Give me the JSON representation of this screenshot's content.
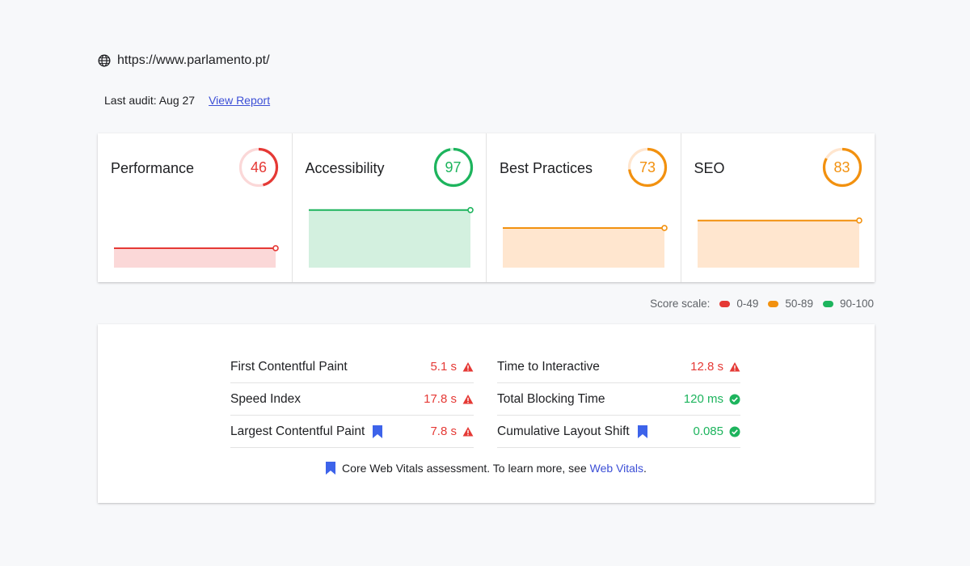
{
  "header": {
    "url": "https://www.parlamento.pt/",
    "last_audit": "Last audit: Aug 27",
    "view_report": "View Report"
  },
  "colors": {
    "red": "#e53935",
    "orange": "#f2910f",
    "green": "#1db45d",
    "blue": "#3d63ea"
  },
  "categories": [
    {
      "name": "Performance",
      "score": 46,
      "status": "red",
      "color": "#e53935",
      "fill": "#fbd8d8"
    },
    {
      "name": "Accessibility",
      "score": 97,
      "status": "green",
      "color": "#1db45d",
      "fill": "#d3f0df"
    },
    {
      "name": "Best Practices",
      "score": 73,
      "status": "orange",
      "color": "#f2910f",
      "fill": "#ffe6cf"
    },
    {
      "name": "SEO",
      "score": 83,
      "status": "orange",
      "color": "#f2910f",
      "fill": "#ffe6cf"
    }
  ],
  "legend": {
    "label": "Score scale:",
    "ranges": [
      {
        "label": "0-49",
        "color": "#e53935"
      },
      {
        "label": "50-89",
        "color": "#f2910f"
      },
      {
        "label": "90-100",
        "color": "#1db45d"
      }
    ]
  },
  "metrics": {
    "left": [
      {
        "label": "First Contentful Paint",
        "value": "5.1 s",
        "status": "warning",
        "core_web_vital": false
      },
      {
        "label": "Speed Index",
        "value": "17.8 s",
        "status": "warning",
        "core_web_vital": false
      },
      {
        "label": "Largest Contentful Paint",
        "value": "7.8 s",
        "status": "warning",
        "core_web_vital": true
      }
    ],
    "right": [
      {
        "label": "Time to Interactive",
        "value": "12.8 s",
        "status": "warning",
        "core_web_vital": false
      },
      {
        "label": "Total Blocking Time",
        "value": "120 ms",
        "status": "pass",
        "core_web_vital": false
      },
      {
        "label": "Cumulative Layout Shift",
        "value": "0.085",
        "status": "pass",
        "core_web_vital": true
      }
    ]
  },
  "footnote": {
    "text": "Core Web Vitals assessment. To learn more, see",
    "link": "Web Vitals",
    "suffix": "."
  }
}
